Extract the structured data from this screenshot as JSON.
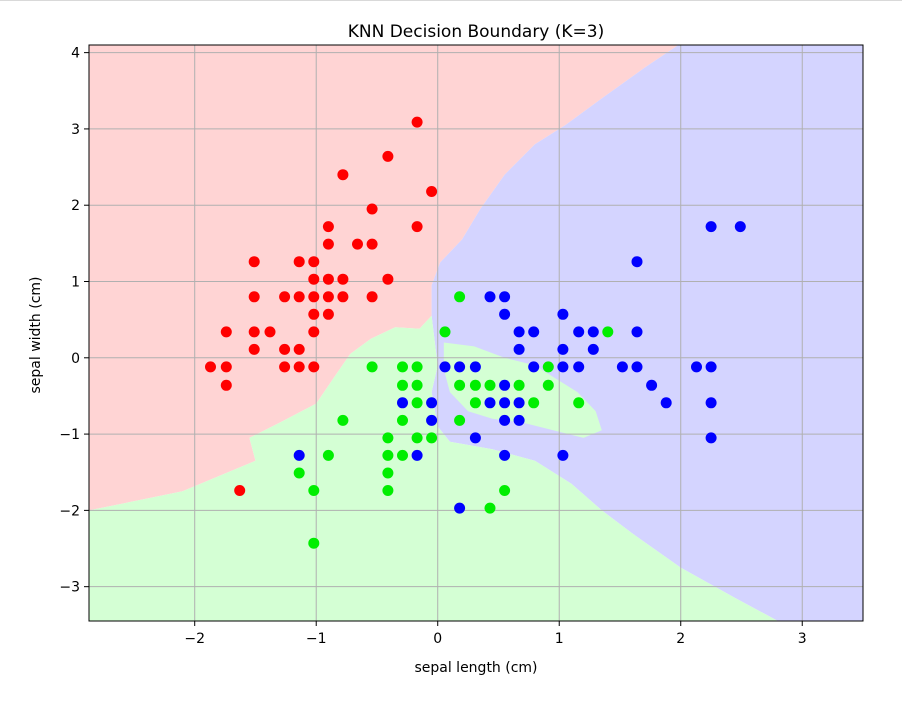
{
  "chart_data": {
    "type": "scatter",
    "title": "KNN Decision Boundary (K=3)",
    "xlabel": "sepal length (cm)",
    "ylabel": "sepal width (cm)",
    "xlim": [
      -2.87,
      3.5
    ],
    "ylim": [
      -3.45,
      4.1
    ],
    "xticks": [
      -2,
      -1,
      0,
      1,
      2,
      3
    ],
    "yticks": [
      4,
      3,
      2,
      1,
      0,
      -1,
      -2,
      -3
    ],
    "grid": true,
    "regions": [
      {
        "class": "red",
        "color": "#ffd4d4",
        "polygon": [
          [
            -2.87,
            4.1
          ],
          [
            1.98,
            4.1
          ],
          [
            1.7,
            3.8
          ],
          [
            1.35,
            3.4
          ],
          [
            1.05,
            3.05
          ],
          [
            0.8,
            2.8
          ],
          [
            0.55,
            2.4
          ],
          [
            0.35,
            1.95
          ],
          [
            0.2,
            1.55
          ],
          [
            0.02,
            1.25
          ],
          [
            -0.05,
            0.95
          ],
          [
            -0.05,
            0.55
          ],
          [
            -0.15,
            0.38
          ],
          [
            -0.35,
            0.4
          ],
          [
            -0.55,
            0.25
          ],
          [
            -0.72,
            0.05
          ],
          [
            -0.85,
            -0.25
          ],
          [
            -1.0,
            -0.6
          ],
          [
            -1.3,
            -0.85
          ],
          [
            -1.55,
            -1.05
          ],
          [
            -1.5,
            -1.35
          ],
          [
            -2.1,
            -1.75
          ],
          [
            -2.87,
            -2.0
          ]
        ]
      },
      {
        "class": "blue",
        "color": "#d4d4ff",
        "polygon": [
          [
            1.98,
            4.1
          ],
          [
            3.5,
            4.1
          ],
          [
            3.5,
            -3.45
          ],
          [
            2.8,
            -3.45
          ],
          [
            2.45,
            -3.15
          ],
          [
            2.0,
            -2.75
          ],
          [
            1.6,
            -2.3
          ],
          [
            1.35,
            -2.0
          ],
          [
            1.1,
            -1.65
          ],
          [
            0.8,
            -1.35
          ],
          [
            0.45,
            -1.2
          ],
          [
            0.1,
            -1.1
          ],
          [
            0.0,
            -0.9
          ],
          [
            -0.05,
            -0.45
          ],
          [
            0.0,
            -0.1
          ],
          [
            -0.02,
            0.15
          ],
          [
            -0.05,
            0.55
          ],
          [
            -0.05,
            0.95
          ],
          [
            0.02,
            1.25
          ],
          [
            0.2,
            1.55
          ],
          [
            0.35,
            1.95
          ],
          [
            0.55,
            2.4
          ],
          [
            0.8,
            2.8
          ],
          [
            1.05,
            3.05
          ],
          [
            1.35,
            3.4
          ],
          [
            1.7,
            3.8
          ]
        ]
      },
      {
        "class": "green",
        "color": "#d4ffd4",
        "polygon": [
          [
            -2.87,
            -2.0
          ],
          [
            -2.1,
            -1.75
          ],
          [
            -1.5,
            -1.35
          ],
          [
            -1.55,
            -1.05
          ],
          [
            -1.3,
            -0.85
          ],
          [
            -1.0,
            -0.6
          ],
          [
            -0.85,
            -0.25
          ],
          [
            -0.72,
            0.05
          ],
          [
            -0.55,
            0.25
          ],
          [
            -0.35,
            0.4
          ],
          [
            -0.15,
            0.38
          ],
          [
            -0.05,
            0.55
          ],
          [
            -0.02,
            0.15
          ],
          [
            0.0,
            -0.1
          ],
          [
            -0.05,
            -0.45
          ],
          [
            0.0,
            -0.9
          ],
          [
            0.1,
            -1.1
          ],
          [
            0.45,
            -1.2
          ],
          [
            0.8,
            -1.35
          ],
          [
            1.1,
            -1.65
          ],
          [
            1.35,
            -2.0
          ],
          [
            1.6,
            -2.3
          ],
          [
            2.0,
            -2.75
          ],
          [
            2.45,
            -3.15
          ],
          [
            2.8,
            -3.45
          ],
          [
            -2.87,
            -3.45
          ]
        ]
      },
      {
        "class": "green",
        "color": "#d4ffd4",
        "polygon": [
          [
            0.05,
            0.2
          ],
          [
            0.3,
            0.15
          ],
          [
            0.55,
            0.0
          ],
          [
            0.8,
            -0.1
          ],
          [
            1.0,
            -0.3
          ],
          [
            1.15,
            -0.45
          ],
          [
            1.3,
            -0.7
          ],
          [
            1.35,
            -0.95
          ],
          [
            1.2,
            -1.05
          ],
          [
            0.95,
            -0.95
          ],
          [
            0.7,
            -0.85
          ],
          [
            0.45,
            -0.8
          ],
          [
            0.25,
            -0.7
          ],
          [
            0.1,
            -0.45
          ],
          [
            0.05,
            -0.15
          ]
        ]
      }
    ],
    "series": [
      {
        "color": "#ff0000",
        "points": [
          [
            -0.17,
            3.09
          ],
          [
            -0.41,
            2.64
          ],
          [
            -0.78,
            2.4
          ],
          [
            -0.05,
            2.18
          ],
          [
            -0.54,
            1.95
          ],
          [
            -0.9,
            1.72
          ],
          [
            -0.17,
            1.72
          ],
          [
            -0.9,
            1.49
          ],
          [
            -0.66,
            1.49
          ],
          [
            -0.54,
            1.49
          ],
          [
            -1.51,
            1.26
          ],
          [
            -1.14,
            1.26
          ],
          [
            -1.02,
            1.26
          ],
          [
            -0.41,
            1.03
          ],
          [
            -1.02,
            1.03
          ],
          [
            -0.9,
            1.03
          ],
          [
            -0.78,
            1.03
          ],
          [
            -1.51,
            0.8
          ],
          [
            -1.26,
            0.8
          ],
          [
            -1.02,
            0.8
          ],
          [
            -0.9,
            0.8
          ],
          [
            -0.78,
            0.8
          ],
          [
            -0.54,
            0.8
          ],
          [
            -1.14,
            0.8
          ],
          [
            -1.02,
            0.57
          ],
          [
            -0.9,
            0.57
          ],
          [
            -1.74,
            0.34
          ],
          [
            -1.51,
            0.34
          ],
          [
            -1.38,
            0.34
          ],
          [
            -1.02,
            0.34
          ],
          [
            -1.51,
            0.11
          ],
          [
            -1.26,
            0.11
          ],
          [
            -1.14,
            0.11
          ],
          [
            -1.87,
            -0.12
          ],
          [
            -1.74,
            -0.12
          ],
          [
            -1.26,
            -0.12
          ],
          [
            -1.14,
            -0.12
          ],
          [
            -1.02,
            -0.12
          ],
          [
            -1.74,
            -0.36
          ],
          [
            -1.63,
            -1.74
          ]
        ]
      },
      {
        "color": "#0000ff",
        "points": [
          [
            2.25,
            1.72
          ],
          [
            2.49,
            1.72
          ],
          [
            1.64,
            1.26
          ],
          [
            0.43,
            0.8
          ],
          [
            0.55,
            0.8
          ],
          [
            0.55,
            0.57
          ],
          [
            1.03,
            0.57
          ],
          [
            0.67,
            0.34
          ],
          [
            0.79,
            0.34
          ],
          [
            1.16,
            0.34
          ],
          [
            1.28,
            0.34
          ],
          [
            1.64,
            0.34
          ],
          [
            0.67,
            0.11
          ],
          [
            1.03,
            0.11
          ],
          [
            1.28,
            0.11
          ],
          [
            0.06,
            -0.12
          ],
          [
            0.18,
            -0.12
          ],
          [
            0.31,
            -0.12
          ],
          [
            0.79,
            -0.12
          ],
          [
            1.03,
            -0.12
          ],
          [
            1.16,
            -0.12
          ],
          [
            1.52,
            -0.12
          ],
          [
            1.64,
            -0.12
          ],
          [
            2.13,
            -0.12
          ],
          [
            2.25,
            -0.12
          ],
          [
            0.55,
            -0.36
          ],
          [
            1.76,
            -0.36
          ],
          [
            -0.29,
            -0.59
          ],
          [
            -0.05,
            -0.59
          ],
          [
            0.43,
            -0.59
          ],
          [
            0.55,
            -0.59
          ],
          [
            0.67,
            -0.59
          ],
          [
            1.88,
            -0.59
          ],
          [
            2.25,
            -0.59
          ],
          [
            -0.05,
            -0.82
          ],
          [
            0.55,
            -0.82
          ],
          [
            0.67,
            -0.82
          ],
          [
            0.31,
            -1.05
          ],
          [
            2.25,
            -1.05
          ],
          [
            -1.14,
            -1.28
          ],
          [
            -0.17,
            -1.28
          ],
          [
            0.55,
            -1.28
          ],
          [
            1.03,
            -1.28
          ],
          [
            0.18,
            -1.97
          ]
        ]
      },
      {
        "color": "#00ee00",
        "points": [
          [
            0.18,
            0.8
          ],
          [
            0.06,
            0.34
          ],
          [
            1.4,
            0.34
          ],
          [
            -0.54,
            -0.12
          ],
          [
            -0.29,
            -0.12
          ],
          [
            -0.17,
            -0.12
          ],
          [
            0.91,
            -0.12
          ],
          [
            -0.29,
            -0.36
          ],
          [
            -0.17,
            -0.36
          ],
          [
            0.18,
            -0.36
          ],
          [
            0.31,
            -0.36
          ],
          [
            0.43,
            -0.36
          ],
          [
            0.67,
            -0.36
          ],
          [
            0.91,
            -0.36
          ],
          [
            -0.17,
            -0.59
          ],
          [
            0.31,
            -0.59
          ],
          [
            0.79,
            -0.59
          ],
          [
            1.16,
            -0.59
          ],
          [
            -0.78,
            -0.82
          ],
          [
            -0.29,
            -0.82
          ],
          [
            0.18,
            -0.82
          ],
          [
            -0.41,
            -1.05
          ],
          [
            -0.17,
            -1.05
          ],
          [
            -0.05,
            -1.05
          ],
          [
            -0.9,
            -1.28
          ],
          [
            -0.41,
            -1.28
          ],
          [
            -0.29,
            -1.28
          ],
          [
            -1.14,
            -1.51
          ],
          [
            -0.41,
            -1.51
          ],
          [
            -1.02,
            -1.74
          ],
          [
            -0.41,
            -1.74
          ],
          [
            0.55,
            -1.74
          ],
          [
            0.43,
            -1.97
          ],
          [
            -1.02,
            -2.43
          ]
        ]
      }
    ]
  }
}
